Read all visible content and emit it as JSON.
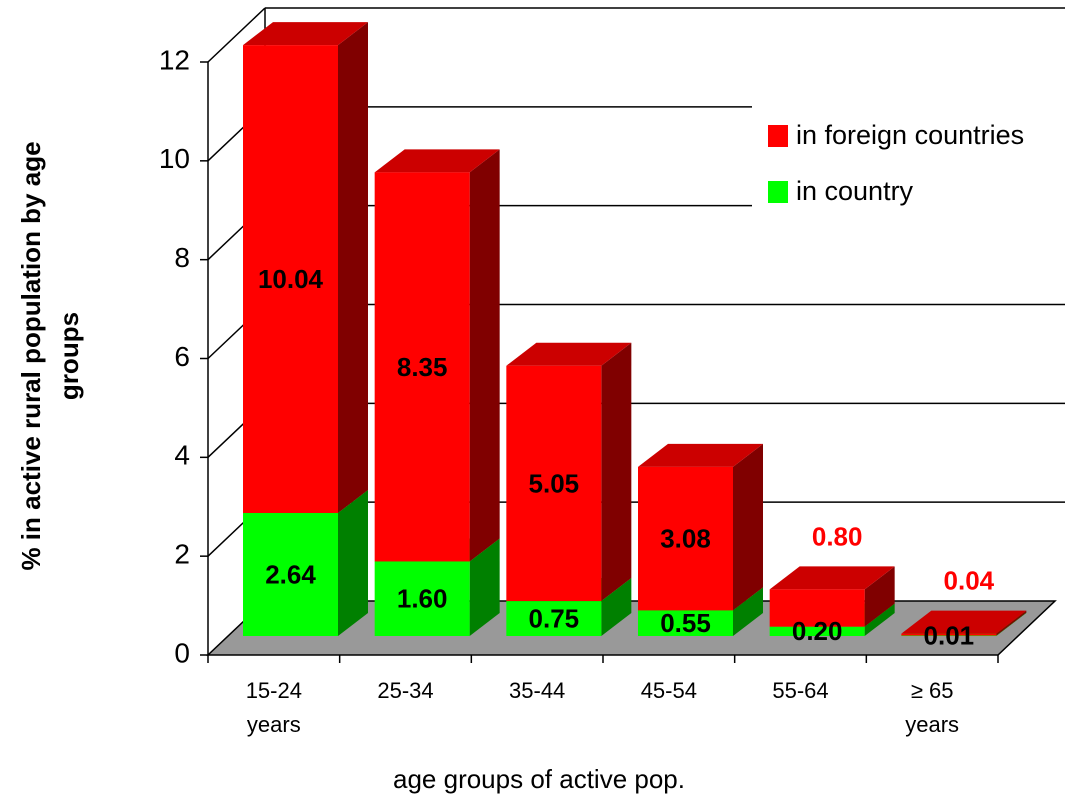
{
  "chart_data": {
    "type": "bar3d_stacked",
    "x_label": "age groups of active pop.",
    "y_label": "% in active rural population by age groups",
    "categories": [
      "15-24\nyears",
      "25-34",
      "35-44",
      "45-54",
      "55-64",
      "≥ 65\nyears"
    ],
    "series": [
      {
        "name": "in country",
        "color": "#00ff00",
        "values": [
          2.64,
          1.6,
          0.75,
          0.55,
          0.2,
          0.01
        ],
        "value_labels": [
          "2.64",
          "1.60",
          "0.75",
          "0.55",
          "0.20",
          "0.01"
        ]
      },
      {
        "name": "in foreign countries",
        "color": "#ff0000",
        "values": [
          10.04,
          8.35,
          5.05,
          3.08,
          0.8,
          0.04
        ],
        "value_labels": [
          "10.04",
          "8.35",
          "5.05",
          "3.08",
          "0.80",
          "0.04"
        ]
      }
    ],
    "ylim": [
      0,
      12
    ],
    "yticks": [
      0,
      2,
      4,
      6,
      8,
      10,
      12
    ],
    "grid": true,
    "legend": "upper right"
  }
}
